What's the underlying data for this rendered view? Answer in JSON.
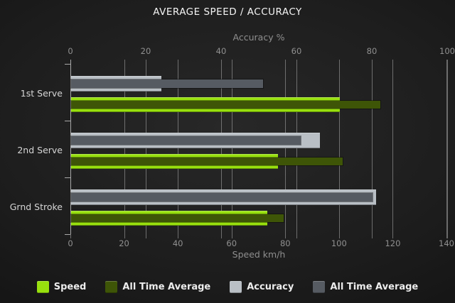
{
  "title": "AVERAGE SPEED / ACCURACY",
  "chart_data": {
    "type": "bar",
    "orientation": "horizontal",
    "grid": true,
    "legend_position": "bottom",
    "categories": [
      "1st Serve",
      "2nd Serve",
      "Grnd Stroke"
    ],
    "series": [
      {
        "name": "Speed",
        "axis": "speed",
        "color": "#98e00e",
        "values": [
          100,
          77,
          73
        ]
      },
      {
        "name": "All Time Average",
        "axis": "speed",
        "color": "#3e5507",
        "values": [
          115,
          101,
          79
        ]
      },
      {
        "name": "Accuracy",
        "axis": "accuracy",
        "color": "#b9bfc5",
        "values": [
          24,
          66,
          81
        ]
      },
      {
        "name": "All Time Average",
        "axis": "accuracy",
        "color": "#565b62",
        "values": [
          51,
          61,
          80
        ]
      }
    ],
    "axes": {
      "top": {
        "label": "Accuracy %",
        "min": 0,
        "max": 100,
        "ticks": [
          0,
          20,
          40,
          60,
          80,
          100
        ]
      },
      "bottom": {
        "label": "Speed km/h",
        "min": 0,
        "max": 140,
        "ticks": [
          0,
          20,
          40,
          60,
          80,
          100,
          120,
          140
        ]
      }
    },
    "legend": [
      {
        "label": "Speed",
        "color": "#98e00e"
      },
      {
        "label": "All Time Average",
        "color": "#3e5507"
      },
      {
        "label": "Accuracy",
        "color": "#b9bfc5"
      },
      {
        "label": "All Time Average",
        "color": "#565b62"
      }
    ]
  }
}
